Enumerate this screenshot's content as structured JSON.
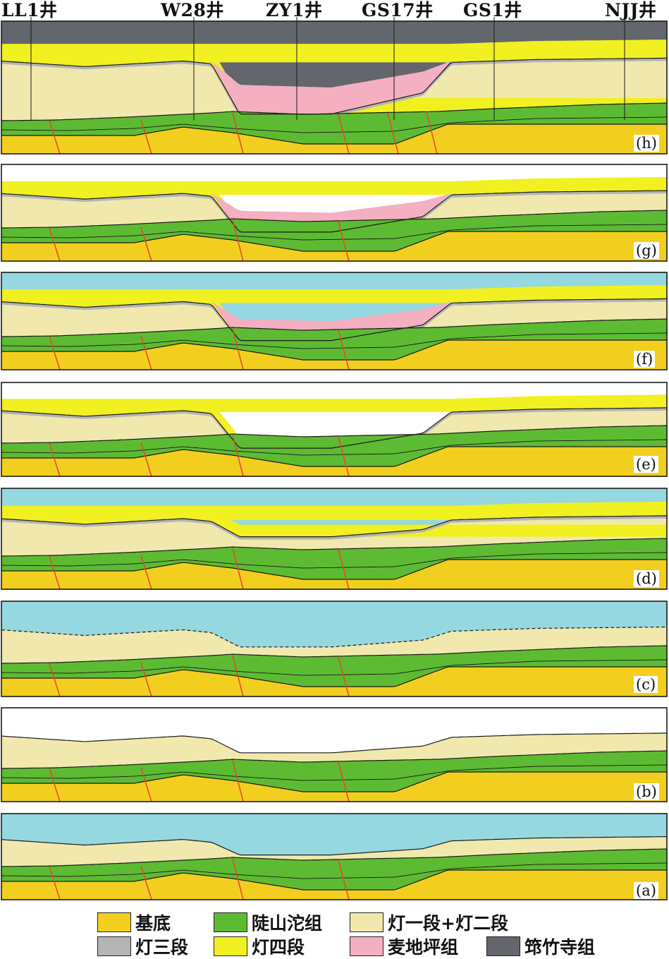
{
  "wells": [
    {
      "id": "LL1",
      "label": "LL1井"
    },
    {
      "id": "W28",
      "label": "W28井"
    },
    {
      "id": "ZY1",
      "label": "ZY1井"
    },
    {
      "id": "GS17",
      "label": "GS17井"
    },
    {
      "id": "GS1",
      "label": "GS1井"
    },
    {
      "id": "NJJ",
      "label": "NJJ井"
    }
  ],
  "panels": [
    {
      "id": "h",
      "label": "(h)",
      "cover": "龚竹寺组"
    },
    {
      "id": "g",
      "label": "(g)",
      "cover": "none"
    },
    {
      "id": "f",
      "label": "(f)",
      "cover": "sea"
    },
    {
      "id": "e",
      "label": "(e)",
      "cover": "none"
    },
    {
      "id": "d",
      "label": "(d)",
      "cover": "sea"
    },
    {
      "id": "c",
      "label": "(c)",
      "cover": "sea"
    },
    {
      "id": "b",
      "label": "(b)",
      "cover": "none"
    },
    {
      "id": "a",
      "label": "(a)",
      "cover": "sea"
    }
  ],
  "legend": [
    {
      "key": "basement",
      "label": "基底",
      "color": "#F2CF1E"
    },
    {
      "key": "lushantuo",
      "label": "陡山沱组",
      "color": "#5DBB33"
    },
    {
      "key": "deng12",
      "label": "灯一段+灯二段",
      "color": "#F1E8AE"
    },
    {
      "key": "deng3",
      "label": "灯三段",
      "color": "#B4B4B4"
    },
    {
      "key": "deng4",
      "label": "灯四段",
      "color": "#F1F020"
    },
    {
      "key": "maidiping",
      "label": "麦地坪组",
      "color": "#F4AFC0"
    },
    {
      "key": "qiongzhusi",
      "label": "筇竹寺组",
      "color": "#63666D"
    }
  ],
  "colors": {
    "sea": "#95D8E0",
    "fault": "#E8442A",
    "outline": "#1a1a1a"
  }
}
